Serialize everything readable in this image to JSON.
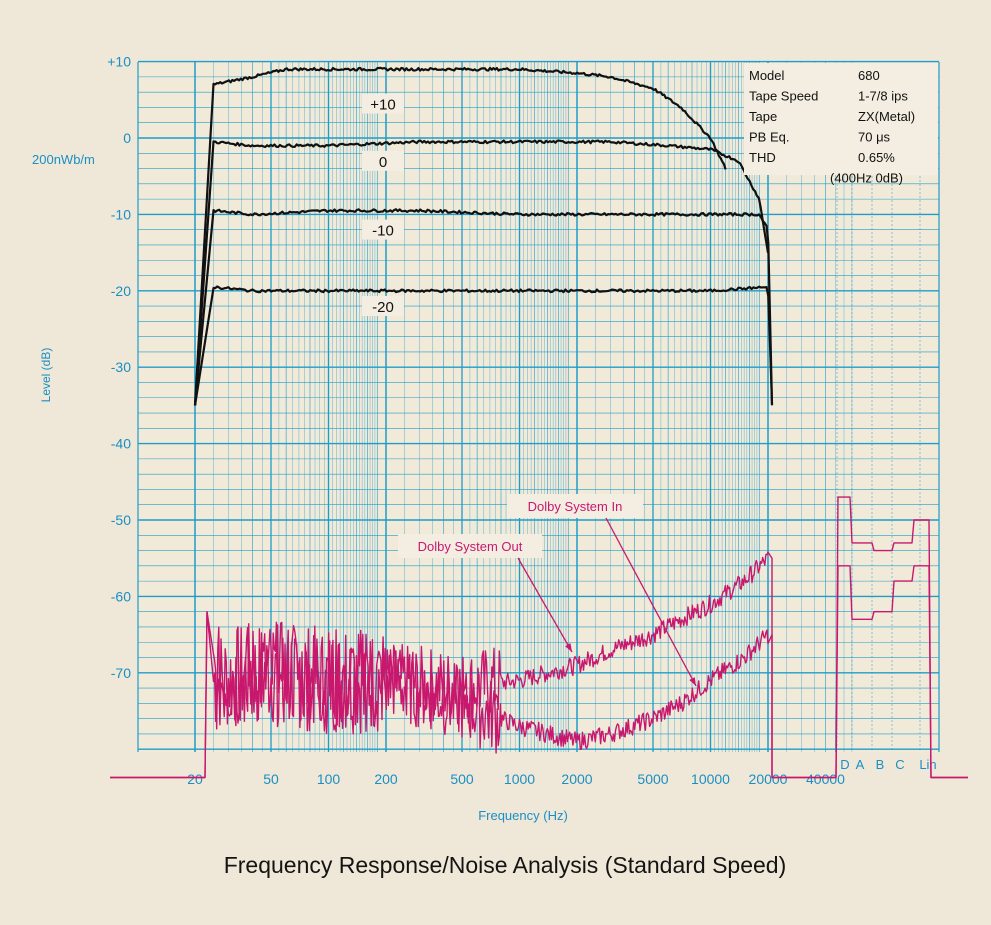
{
  "chart_data": {
    "type": "line",
    "title": "Frequency Response/Noise Analysis (Standard Speed)",
    "xlabel": "Frequency (Hz)",
    "ylabel": "Level (dB)",
    "x_scale": "log",
    "xlim": [
      20,
      40000
    ],
    "ylim": [
      -80,
      10
    ],
    "x_ticks": [
      "20",
      "50",
      "100",
      "200",
      "500",
      "1000",
      "2000",
      "5000",
      "10000",
      "20000",
      "40000"
    ],
    "y_ticks": [
      "+10",
      "0",
      "-10",
      "-20",
      "-30",
      "-40",
      "-50",
      "-60",
      "-70"
    ],
    "y_reference": "200nWb/m",
    "weighting_labels": [
      "D",
      "A",
      "B",
      "C",
      "Lin"
    ],
    "grid": true,
    "colors": {
      "grid": "#1f9cc9",
      "response": "#111111",
      "noise": "#c8186e",
      "text_blue": "#1a8fc4"
    },
    "info_table": [
      {
        "key": "Model",
        "value": "680"
      },
      {
        "key": "Tape Speed",
        "value": "1-7/8 ips"
      },
      {
        "key": "Tape",
        "value": "ZX(Metal)"
      },
      {
        "key": "PB Eq.",
        "value": "70 μs"
      },
      {
        "key": "THD",
        "value": "0.65%"
      },
      {
        "key": "",
        "value": "(400Hz 0dB)"
      }
    ],
    "response_series": [
      {
        "name": "+10",
        "x": [
          20,
          25,
          40,
          60,
          100,
          300,
          1000,
          2000,
          3000,
          5000,
          7000,
          10000,
          12000
        ],
        "y": [
          -35,
          7,
          8,
          9,
          9,
          9,
          9,
          8.5,
          8,
          6.5,
          4,
          0,
          -4
        ]
      },
      {
        "name": "0",
        "x": [
          20,
          25,
          40,
          100,
          300,
          1000,
          3000,
          6000,
          10000,
          14000,
          18000,
          20000
        ],
        "y": [
          -35,
          -0.5,
          -1,
          -1,
          -0.5,
          -0.5,
          -0.5,
          -1,
          -1.5,
          -3,
          -8,
          -15
        ]
      },
      {
        "name": "-10",
        "x": [
          20,
          25,
          40,
          100,
          300,
          1000,
          3000,
          10000,
          18000,
          20000,
          21000
        ],
        "y": [
          -35,
          -9.5,
          -10,
          -9.5,
          -9.5,
          -10,
          -10,
          -10,
          -10,
          -12,
          -35
        ]
      },
      {
        "name": "-20",
        "x": [
          20,
          25,
          40,
          100,
          300,
          1000,
          3000,
          10000,
          20000,
          21000
        ],
        "y": [
          -35,
          -19.5,
          -20,
          -20,
          -20,
          -20,
          -20,
          -20,
          -19.5,
          -35
        ]
      }
    ],
    "noise_series": [
      {
        "name": "Dolby System Out",
        "x": [
          25,
          50,
          100,
          200,
          500,
          1000,
          2000,
          3000,
          5000,
          7000,
          10000,
          15000,
          20000
        ],
        "y": [
          -71,
          -70,
          -71,
          -71,
          -72,
          -71,
          -69,
          -67,
          -65,
          -63,
          -61,
          -58,
          -55
        ],
        "weighting": {
          "D": -47,
          "A": -53,
          "B": -54,
          "C": -53,
          "Lin": -50
        }
      },
      {
        "name": "Dolby System In",
        "x": [
          25,
          50,
          100,
          200,
          500,
          1000,
          2000,
          3000,
          5000,
          7000,
          10000,
          15000,
          20000
        ],
        "y": [
          -71,
          -70,
          -71,
          -71,
          -74,
          -77,
          -79,
          -78,
          -76,
          -74,
          -71,
          -68,
          -65
        ],
        "weighting": {
          "D": -56,
          "A": -63,
          "B": -62,
          "C": -58,
          "Lin": -56
        }
      }
    ]
  }
}
